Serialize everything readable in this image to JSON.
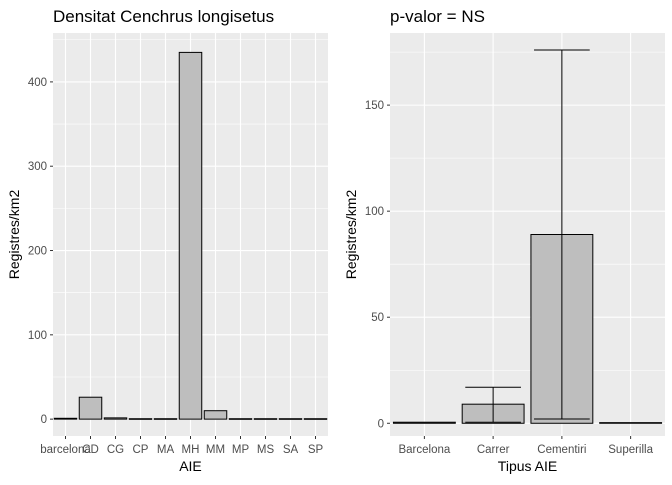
{
  "chart_data": [
    {
      "type": "bar",
      "title": "Densitat Cenchrus longisetus",
      "xlabel": "AIE",
      "ylabel": "Registres/km2",
      "categories": [
        "barcelona",
        "CD",
        "CG",
        "CP",
        "MA",
        "MH",
        "MM",
        "MP",
        "MS",
        "SA",
        "SP"
      ],
      "values": [
        1,
        26,
        1.5,
        0.5,
        0.5,
        435,
        10,
        0.5,
        0.5,
        0.5,
        0.5
      ],
      "ylim": [
        -20,
        458
      ],
      "yticks": [
        0,
        100,
        200,
        300,
        400
      ],
      "grid": true,
      "bar_color": "#bebebe",
      "panel_color": "#ebebeb"
    },
    {
      "type": "bar",
      "title": "p-valor = NS",
      "xlabel": "Tipus AIE",
      "ylabel": "Registres/km2",
      "categories": [
        "Barcelona",
        "Carrer",
        "Cementiri",
        "Superilla"
      ],
      "values": [
        0.5,
        9,
        89,
        0.3
      ],
      "error_low": [
        null,
        0.5,
        2,
        null
      ],
      "error_high": [
        null,
        17,
        176,
        null
      ],
      "ylim": [
        -6,
        184
      ],
      "yticks": [
        0,
        50,
        100,
        150
      ],
      "grid": true,
      "bar_color": "#bebebe",
      "panel_color": "#ebebeb"
    }
  ]
}
